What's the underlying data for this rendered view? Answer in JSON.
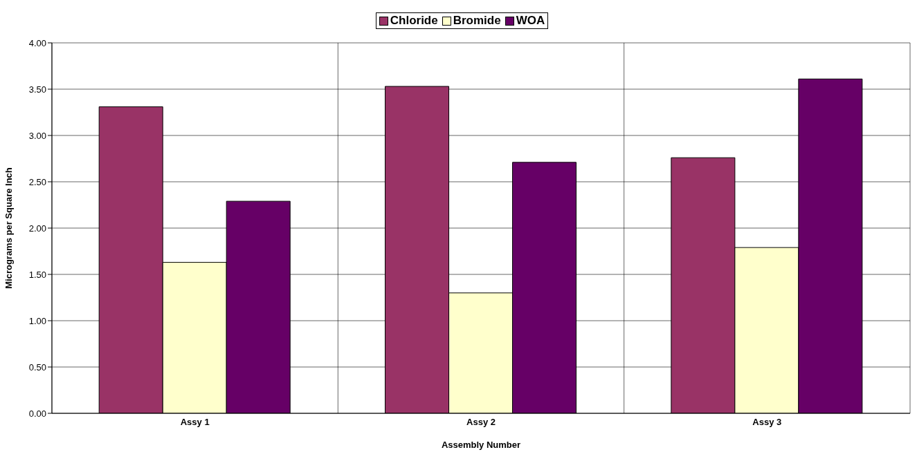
{
  "chart_data": {
    "type": "bar",
    "xlabel": "Assembly Number",
    "ylabel": "Micrograms per Square Inch",
    "categories": [
      "Assy 1",
      "Assy 2",
      "Assy 3"
    ],
    "series": [
      {
        "name": "Chloride",
        "color": "#993366",
        "values": [
          3.31,
          3.53,
          2.76
        ]
      },
      {
        "name": "Bromide",
        "color": "#ffffcc",
        "values": [
          1.63,
          1.3,
          1.79
        ]
      },
      {
        "name": "WOA",
        "color": "#660066",
        "values": [
          2.29,
          2.71,
          3.61
        ]
      }
    ],
    "ylim": [
      0,
      4
    ],
    "yticks": [
      {
        "value": 0,
        "label": "0.00"
      },
      {
        "value": 0.5,
        "label": "0.50"
      },
      {
        "value": 1,
        "label": "1.00"
      },
      {
        "value": 1.5,
        "label": "1.50"
      },
      {
        "value": 2,
        "label": "2.00"
      },
      {
        "value": 2.5,
        "label": "2.50"
      },
      {
        "value": 3,
        "label": "3.00"
      },
      {
        "value": 3.5,
        "label": "3.50"
      },
      {
        "value": 4,
        "label": "4.00"
      }
    ],
    "grid": true,
    "legend": "top"
  }
}
